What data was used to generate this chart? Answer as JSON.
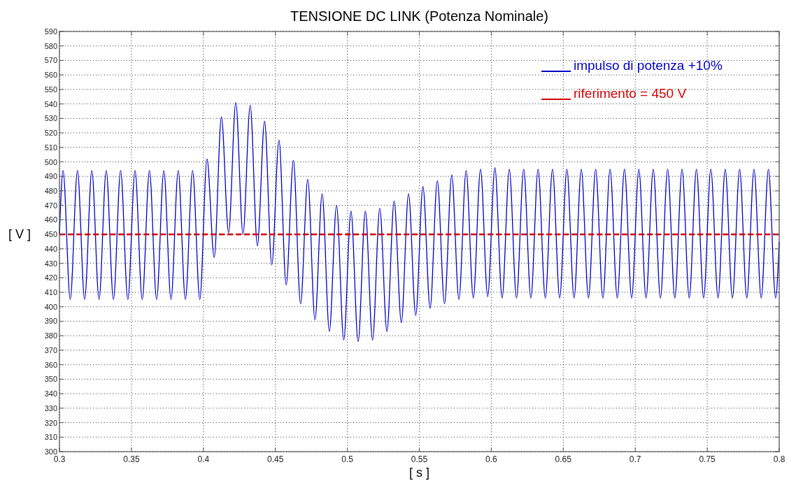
{
  "chart_data": {
    "type": "line",
    "title": "TENSIONE DC LINK (Potenza Nominale)",
    "xlabel": "[ s ]",
    "ylabel": "[ V ]",
    "xlim": [
      0.3,
      0.8
    ],
    "xticks": [
      0.3,
      0.35,
      0.4,
      0.45,
      0.5,
      0.55,
      0.6,
      0.65,
      0.7,
      0.75,
      0.8
    ],
    "ylim": [
      300,
      590
    ],
    "yticks": [
      300,
      310,
      320,
      330,
      340,
      350,
      360,
      370,
      380,
      390,
      400,
      410,
      420,
      430,
      440,
      450,
      460,
      470,
      480,
      490,
      500,
      510,
      520,
      530,
      540,
      550,
      560,
      570,
      580,
      590
    ],
    "grid": true,
    "legend": "top right",
    "series": [
      {
        "name": "impulso di potenza +10%",
        "color": "#0000c8",
        "line_style": "solid",
        "x": [
          0.3,
          0.3025,
          0.3075,
          0.3125,
          0.3175,
          0.3225,
          0.3275,
          0.3325,
          0.3375,
          0.3425,
          0.3475,
          0.3525,
          0.3575,
          0.3625,
          0.3675,
          0.3725,
          0.3775,
          0.3825,
          0.3875,
          0.3925,
          0.3975,
          0.4025,
          0.4075,
          0.4125,
          0.4175,
          0.4225,
          0.4275,
          0.4325,
          0.4375,
          0.4425,
          0.4475,
          0.4525,
          0.4575,
          0.4625,
          0.4675,
          0.4725,
          0.4775,
          0.4825,
          0.4875,
          0.4925,
          0.4975,
          0.5025,
          0.5075,
          0.5125,
          0.5175,
          0.5225,
          0.5275,
          0.5325,
          0.5375,
          0.5425,
          0.5475,
          0.5525,
          0.5575,
          0.5625,
          0.5675,
          0.5725,
          0.5775,
          0.5825,
          0.5875,
          0.5925,
          0.5975,
          0.6025,
          0.6075,
          0.6125,
          0.6175,
          0.6225,
          0.6275,
          0.6325,
          0.6375,
          0.6425,
          0.6475,
          0.6525,
          0.6575,
          0.6625,
          0.6675,
          0.6725,
          0.6775,
          0.6825,
          0.6875,
          0.6925,
          0.6975,
          0.7025,
          0.7075,
          0.7125,
          0.7175,
          0.7225,
          0.7275,
          0.7325,
          0.7375,
          0.7425,
          0.7475,
          0.7525,
          0.7575,
          0.7625,
          0.7675,
          0.7725,
          0.7775,
          0.7825,
          0.7875,
          0.7925,
          0.7975,
          0.8
        ],
        "values": [
          450,
          494,
          405,
          494,
          405,
          494,
          405,
          494,
          405,
          494,
          405,
          494,
          405,
          494,
          405,
          494,
          405,
          494,
          405,
          494,
          405,
          502,
          434,
          531,
          451,
          541,
          450,
          539,
          442,
          528,
          429,
          515,
          415,
          501,
          402,
          488,
          391,
          478,
          383,
          470,
          377,
          466,
          376,
          466,
          377,
          468,
          383,
          473,
          389,
          478,
          394,
          483,
          399,
          487,
          402,
          491,
          405,
          494,
          406,
          495,
          407,
          496,
          406,
          495,
          406,
          495,
          406,
          495,
          406,
          495,
          406,
          495,
          406,
          495,
          406,
          495,
          406,
          495,
          406,
          495,
          406,
          495,
          406,
          495,
          406,
          495,
          406,
          495,
          406,
          495,
          406,
          495,
          406,
          495,
          406,
          495,
          406,
          495,
          406,
          495,
          406,
          445
        ]
      },
      {
        "name": "riferimento = 450 V",
        "color": "#d40000",
        "line_style": "dashed",
        "x": [
          0.3,
          0.8
        ],
        "values": [
          450,
          450
        ]
      }
    ]
  }
}
